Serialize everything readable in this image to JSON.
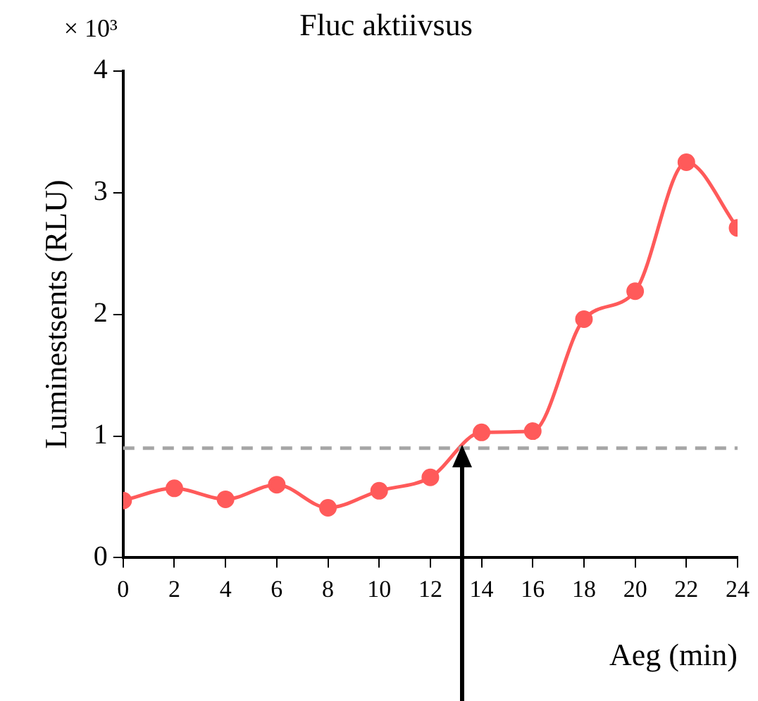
{
  "chart_data": {
    "type": "line",
    "title": "Fluc aktiivsus",
    "xlabel": "Aeg (min)",
    "ylabel": "Luminestsents (RLU)",
    "annotations": [
      "× 10³"
    ],
    "x": [
      0,
      2,
      4,
      6,
      8,
      10,
      12,
      14,
      16,
      18,
      20,
      22,
      24
    ],
    "series": [
      {
        "color": "#ff5a5a",
        "values": [
          0.47,
          0.57,
          0.48,
          0.6,
          0.41,
          0.55,
          0.66,
          1.03,
          1.04,
          1.96,
          2.19,
          3.25,
          2.71
        ]
      }
    ],
    "xlim": [
      0,
      24
    ],
    "xticks": [
      0,
      2,
      4,
      6,
      8,
      10,
      12,
      14,
      16,
      18,
      20,
      22,
      24
    ],
    "ylim": [
      0,
      4
    ],
    "yticks": [
      0,
      1,
      2,
      3,
      4
    ],
    "ref_lines": [
      {
        "axis": "y",
        "value": 0.9,
        "color": "#a6a6a6",
        "line_style": "dashed"
      }
    ],
    "grid": false,
    "legend": false,
    "marker": "circle",
    "line_style": "solid"
  }
}
